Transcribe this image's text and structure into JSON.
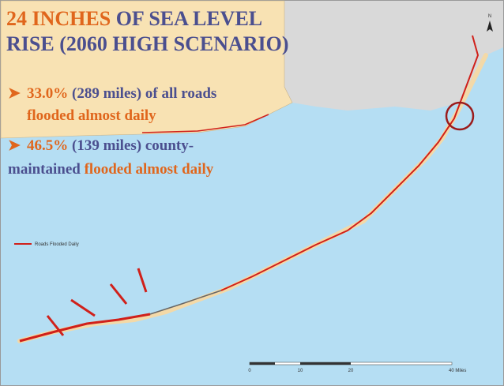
{
  "title": {
    "line1_highlight": "24 INCHES",
    "line1_rest": " OF SEA LEVEL",
    "line2": "RISE (2060 HIGH SCENARIO)"
  },
  "bullets": [
    {
      "percent": "33.0%",
      "rest": " (289 miles) of all roads",
      "line2": "flooded almost daily"
    },
    {
      "percent": "46.5%",
      "rest": " (139 miles) county-",
      "line2_start": "maintained ",
      "line2_highlight": "flooded almost daily"
    }
  ],
  "legend": "Roads Flooded Daily",
  "scale_labels": [
    "0",
    "10",
    "20",
    "40 Miles"
  ],
  "north": "N"
}
